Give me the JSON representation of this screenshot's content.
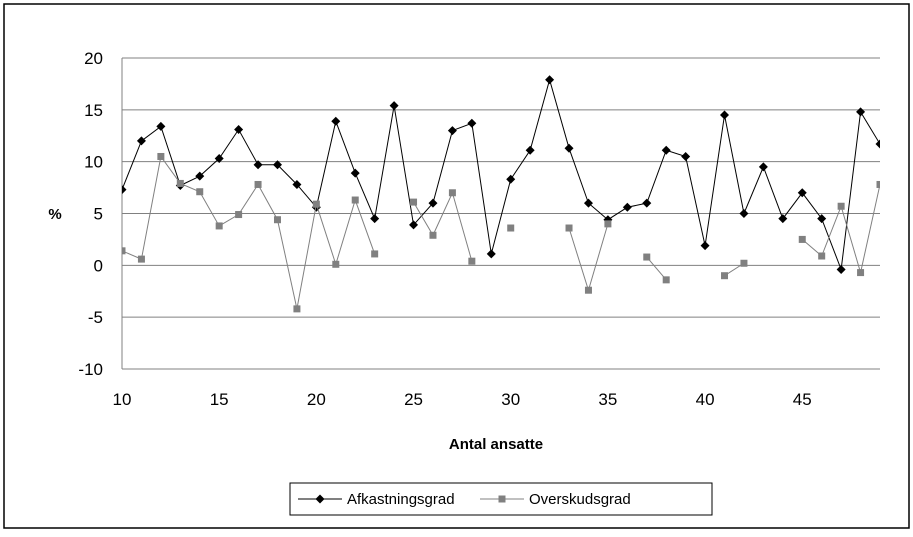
{
  "chart_data": {
    "type": "line",
    "title": "",
    "xlabel": "Antal ansatte",
    "ylabel": "%",
    "xlim": [
      10,
      49
    ],
    "ylim": [
      -10,
      20
    ],
    "x_ticks": [
      "10",
      "15",
      "20",
      "25",
      "30",
      "35",
      "40",
      "45"
    ],
    "y_ticks": [
      "20",
      "15",
      "10",
      "5",
      "0",
      "-5",
      "-10"
    ],
    "grid": "horizontal",
    "legend_position": "bottom",
    "series": [
      {
        "name": "Afkastningsgrad",
        "marker": "diamond",
        "color": "#000000",
        "points": [
          [
            10,
            7.3
          ],
          [
            11,
            12.0
          ],
          [
            12,
            13.4
          ],
          [
            13,
            7.7
          ],
          [
            14,
            8.6
          ],
          [
            15,
            10.3
          ],
          [
            16,
            13.1
          ],
          [
            17,
            9.7
          ],
          [
            18,
            9.7
          ],
          [
            19,
            7.8
          ],
          [
            20,
            5.6
          ],
          [
            21,
            13.9
          ],
          [
            22,
            8.9
          ],
          [
            23,
            4.5
          ],
          [
            24,
            15.4
          ],
          [
            25,
            3.9
          ],
          [
            26,
            6.0
          ],
          [
            27,
            13.0
          ],
          [
            28,
            13.7
          ],
          [
            29,
            1.1
          ],
          [
            30,
            8.3
          ],
          [
            31,
            11.1
          ],
          [
            32,
            17.9
          ],
          [
            33,
            11.3
          ],
          [
            34,
            6.0
          ],
          [
            35,
            4.4
          ],
          [
            36,
            5.6
          ],
          [
            37,
            6.0
          ],
          [
            38,
            11.1
          ],
          [
            39,
            10.5
          ],
          [
            40,
            1.9
          ],
          [
            41,
            14.5
          ],
          [
            42,
            5.0
          ],
          [
            43,
            9.5
          ],
          [
            44,
            4.5
          ],
          [
            45,
            7.0
          ],
          [
            46,
            4.5
          ],
          [
            47,
            -0.4
          ],
          [
            48,
            14.8
          ],
          [
            49,
            11.7
          ]
        ]
      },
      {
        "name": "Overskudsgrad",
        "marker": "square",
        "color": "#808080",
        "points": [
          [
            9.9,
            2.0
          ],
          [
            10,
            1.4
          ],
          [
            11,
            0.6
          ],
          [
            12,
            10.5
          ],
          [
            13,
            7.9
          ],
          [
            14,
            7.1
          ],
          [
            15,
            3.8
          ],
          [
            16,
            4.9
          ],
          [
            17,
            7.8
          ],
          [
            18,
            4.4
          ],
          [
            19,
            -4.2
          ],
          [
            20,
            5.9
          ],
          [
            21,
            0.1
          ],
          [
            22,
            6.3
          ],
          [
            23,
            1.1
          ],
          [
            24,
            null
          ],
          [
            25,
            6.1
          ],
          [
            26,
            2.9
          ],
          [
            27,
            7.0
          ],
          [
            28,
            0.4
          ],
          [
            29,
            null
          ],
          [
            30,
            3.6
          ],
          [
            31,
            null
          ],
          [
            32,
            null
          ],
          [
            33,
            3.6
          ],
          [
            34,
            -2.4
          ],
          [
            35,
            4.0
          ],
          [
            36,
            null
          ],
          [
            37,
            0.8
          ],
          [
            38,
            -1.4
          ],
          [
            39,
            null
          ],
          [
            40,
            null
          ],
          [
            41,
            -1.0
          ],
          [
            42,
            0.2
          ],
          [
            43,
            null
          ],
          [
            44,
            null
          ],
          [
            45,
            2.5
          ],
          [
            46,
            0.9
          ],
          [
            47,
            5.7
          ],
          [
            48,
            -0.7
          ],
          [
            49,
            7.8
          ],
          [
            49.4,
            4.8
          ]
        ]
      }
    ]
  }
}
